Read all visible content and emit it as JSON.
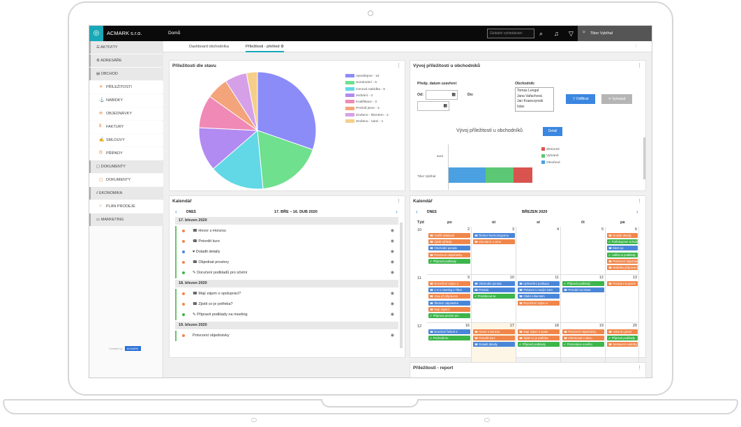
{
  "app": {
    "brand": "ACMARK s.r.o.",
    "page_title": "Domů",
    "search_placeholder": "Globální vyhledávání",
    "user": "Tibor Vybíhal"
  },
  "tabs": [
    {
      "label": "Dashboard obchodníka"
    },
    {
      "label": "Příležitosti - přehled"
    }
  ],
  "sidebar": {
    "items": [
      {
        "label": "AKTIVITY"
      },
      {
        "label": "ADRESÁŘE"
      },
      {
        "label": "OBCHOD"
      },
      {
        "label": "PŘÍLEŽITOSTI"
      },
      {
        "label": "NABÍDKY"
      },
      {
        "label": "OBJEDNÁVKY"
      },
      {
        "label": "FAKTURY"
      },
      {
        "label": "SMLOUVY"
      },
      {
        "label": "PŘÍPADY"
      },
      {
        "label": "DOKUMENTY"
      },
      {
        "label": "DOKUMENTY"
      },
      {
        "label": "EKONOMIKA"
      },
      {
        "label": "PLÁN PRODEJE"
      },
      {
        "label": "MARKETING"
      }
    ],
    "powered_by": "Created by",
    "powered_logo": "ACMARK"
  },
  "pie_panel": {
    "title": "Příležitosti dle stavu"
  },
  "chart_data": {
    "type": "pie",
    "categories": [
      "Vytvářejme - 10",
      "Sondování - 6",
      "Cenová nabídka - 5",
      "Jednání - 4",
      "Kvalifikace - 3",
      "Prohrál jsme - 2",
      "Zrušeno - klientem - 2",
      "Zrušeno - námi - 1"
    ],
    "values": [
      10,
      6,
      5,
      4,
      3,
      2,
      2,
      1
    ],
    "colors": [
      "#8b8cf8",
      "#6ee08e",
      "#62d8e6",
      "#b18af2",
      "#f089b6",
      "#f3a47a",
      "#d6a0e8",
      "#f5cf8a"
    ],
    "legend": "right"
  },
  "dev_panel": {
    "title": "Vývoj příležitostí u obchodníků",
    "date_label": "Předp. datum uzavření:",
    "from_label": "Od:",
    "to_label": "Do:",
    "merchant_label": "Obchodník:",
    "merchants": [
      "Tomas Lengal",
      "Jana Vařachová",
      "Jan Krawczynski",
      "Istav"
    ],
    "filter_btn": "Odfiltrat",
    "clear_btn": "Vymazat",
    "chart_title": "Vývoj příležitostí u obchodníků",
    "detail_btn": "Detail",
    "legend": [
      {
        "label": "Ztracené",
        "color": "#d9534f"
      },
      {
        "label": "Vyhrané",
        "color": "#5cc774"
      },
      {
        "label": "Otevřené",
        "color": "#4aa0e0"
      }
    ],
    "row_labels": [
      "aura",
      "Tibor Vybíhal"
    ]
  },
  "agenda_panel": {
    "title": "Kalendář",
    "today": "DNES",
    "range": "17. BŘE – 16. DUB 2020",
    "days": [
      {
        "date": "17. březen 2020",
        "items": [
          {
            "text": "Hovor s Honzou",
            "color": "#f0864a",
            "icon": "☎"
          },
          {
            "text": "Potvrdit kurz",
            "color": "#f0864a",
            "icon": "☎"
          },
          {
            "text": "Doladit detaily",
            "color": "#4a86d8",
            "icon": "♥"
          },
          {
            "text": "Objednat prostory",
            "color": "#f0864a",
            "icon": "☎"
          },
          {
            "text": "Doručení podkladů pro účetní",
            "color": "#3cb54a",
            "icon": "✎"
          }
        ]
      },
      {
        "date": "18. březen 2020",
        "items": [
          {
            "text": "Mají zájem o spolupráci?",
            "color": "#f0864a",
            "icon": "☎"
          },
          {
            "text": "Zjistit co je potřeba?",
            "color": "#f0864a",
            "icon": "☎"
          },
          {
            "text": "Připravit podklady na meeting",
            "color": "#3cb54a",
            "icon": "✎"
          }
        ]
      },
      {
        "date": "19. březen 2020",
        "items": [
          {
            "text": "Potvrzení objednávky",
            "color": "#f0864a",
            "icon": ""
          }
        ]
      }
    ]
  },
  "month_panel": {
    "title": "Kalendář",
    "today": "DNES",
    "month": "BŘEZEN 2020",
    "headers": [
      "Týd",
      "po",
      "út",
      "st",
      "čt",
      "pá"
    ],
    "weeks": [
      {
        "wk": "10",
        "days": [
          "2",
          "3",
          "4",
          "5",
          "6"
        ]
      },
      {
        "wk": "11",
        "days": [
          "9",
          "10",
          "11",
          "12",
          "13"
        ]
      },
      {
        "wk": "12",
        "days": [
          "16",
          "17",
          "18",
          "19",
          "20"
        ]
      }
    ],
    "events": [
      {
        "w": 0,
        "d": 0,
        "c": "o",
        "t": "Ověřit skladové"
      },
      {
        "w": 0,
        "d": 0,
        "c": "o",
        "t": "Zjistit výhledy"
      },
      {
        "w": 0,
        "d": 0,
        "c": "b",
        "t": "Obchodní porada"
      },
      {
        "w": 0,
        "d": 0,
        "c": "o",
        "t": "Potvrzení objednávky"
      },
      {
        "w": 0,
        "d": 0,
        "c": "g",
        "t": "Připravit podklady"
      },
      {
        "w": 0,
        "d": 1,
        "c": "b",
        "t": "Řešení harmonogramu"
      },
      {
        "w": 0,
        "d": 1,
        "c": "o",
        "t": "Zavolat si o cenu"
      },
      {
        "w": 0,
        "d": 4,
        "c": "o",
        "t": "Doladit detaily"
      },
      {
        "w": 0,
        "d": 4,
        "c": "g",
        "t": "Potřebujeme schválit"
      },
      {
        "w": 0,
        "d": 4,
        "c": "b",
        "t": "Meet up"
      },
      {
        "w": 0,
        "d": 4,
        "c": "g",
        "t": "Udělat si podklady"
      },
      {
        "w": 0,
        "d": 4,
        "c": "o",
        "t": "Potvrzení objednávky"
      },
      {
        "w": 0,
        "d": 4,
        "c": "o",
        "t": "Nabídka připravena"
      },
      {
        "w": 1,
        "d": 0,
        "c": "o",
        "t": "Rozvržení zájmu o"
      },
      {
        "w": 1,
        "d": 0,
        "c": "b",
        "t": "1-2-1 meeting s Tibor"
      },
      {
        "w": 1,
        "d": 0,
        "c": "o",
        "t": "Jsou již připraveni"
      },
      {
        "w": 1,
        "d": 0,
        "c": "b",
        "t": "Školení odpoledne"
      },
      {
        "w": 1,
        "d": 0,
        "c": "o",
        "t": "Mají zájem?"
      },
      {
        "w": 1,
        "d": 0,
        "c": "g",
        "t": "Připrava prostor pro"
      },
      {
        "w": 1,
        "d": 1,
        "c": "b",
        "t": "Obchodní porada"
      },
      {
        "w": 1,
        "d": 1,
        "c": "b",
        "t": "Porada"
      },
      {
        "w": 1,
        "d": 1,
        "c": "g",
        "t": "Protáhnout se"
      },
      {
        "w": 1,
        "d": 2,
        "c": "b",
        "t": "Upřesnění podkupu"
      },
      {
        "w": 1,
        "d": 2,
        "c": "b",
        "t": "Pohovor s novým zam"
      },
      {
        "w": 1,
        "d": 2,
        "c": "b",
        "t": "Oběd s klientem"
      },
      {
        "w": 1,
        "d": 2,
        "c": "o",
        "t": "Rozvržení zájmu s"
      },
      {
        "w": 1,
        "d": 3,
        "c": "g",
        "t": "Připravit podklady"
      },
      {
        "w": 1,
        "d": 3,
        "c": "b",
        "t": "Pozvání na krase"
      },
      {
        "w": 1,
        "d": 4,
        "c": "o",
        "t": "Porada s kupcem"
      },
      {
        "w": 2,
        "d": 0,
        "c": "b",
        "t": "Doručení řešení s"
      },
      {
        "w": 2,
        "d": 0,
        "c": "g",
        "t": "Pochodit se"
      },
      {
        "w": 2,
        "d": 1,
        "c": "o",
        "t": "Hovor s Honzou"
      },
      {
        "w": 2,
        "d": 1,
        "c": "o",
        "t": "Potvrdit kurz"
      },
      {
        "w": 2,
        "d": 1,
        "c": "b",
        "t": "Doladit detaily"
      },
      {
        "w": 2,
        "d": 2,
        "c": "o",
        "t": "Mají zájem o spolu"
      },
      {
        "w": 2,
        "d": 2,
        "c": "o",
        "t": "Zjistit co je potřeba"
      },
      {
        "w": 2,
        "d": 2,
        "c": "g",
        "t": "Připravit podklady"
      },
      {
        "w": 2,
        "d": 3,
        "c": "o",
        "t": "Potvrzení objednávky"
      },
      {
        "w": 2,
        "d": 3,
        "c": "o",
        "t": "Informovat o slevu"
      },
      {
        "w": 2,
        "d": 3,
        "c": "g",
        "t": "Prezentace nového"
      },
      {
        "w": 2,
        "d": 4,
        "c": "o",
        "t": "Volat do potvrt"
      },
      {
        "w": 2,
        "d": 4,
        "c": "g",
        "t": "Připravit podklady"
      },
      {
        "w": 2,
        "d": 4,
        "c": "o",
        "t": "Sestavení nabídky"
      }
    ]
  },
  "report_panel": {
    "title": "Příležitosti - report"
  }
}
